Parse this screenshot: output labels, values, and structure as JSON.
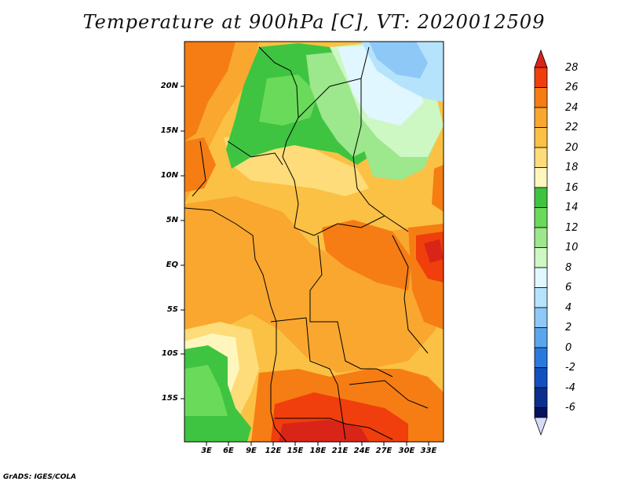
{
  "title": "Temperature at 900hPa [C], VT: 2020012509",
  "footer": "GrADS: IGES/COLA",
  "map": {
    "lon_range": [
      0,
      35
    ],
    "lat_range": [
      -20,
      25
    ],
    "lat_labels": [
      "20N",
      "15N",
      "10N",
      "5N",
      "EQ",
      "5S",
      "10S",
      "15S"
    ],
    "lon_labels": [
      "3E",
      "6E",
      "9E",
      "12E",
      "15E",
      "18E",
      "21E",
      "24E",
      "27E",
      "30E",
      "33E"
    ]
  },
  "colorbar": {
    "labels": [
      "28",
      "26",
      "24",
      "22",
      "20",
      "18",
      "16",
      "14",
      "12",
      "10",
      "8",
      "6",
      "4",
      "2",
      "0",
      "-2",
      "-4",
      "-6"
    ],
    "colors": {
      "gt28": "#d92418",
      "26_28": "#f03e0c",
      "24_26": "#f57d14",
      "22_24": "#f9a72f",
      "20_22": "#fbc144",
      "18_20": "#fddc79",
      "16_18": "#fff6bd",
      "14_16": "#3fc441",
      "12_14": "#6ada5a",
      "10_12": "#9de78c",
      "8_10": "#cdf7c3",
      "6_8": "#e0f7ff",
      "4_6": "#b6e3fc",
      "2_4": "#8ec8f7",
      "0_2": "#5aa6ed",
      "m2_0": "#2a79dc",
      "m4_m2": "#1250c1",
      "m6_m4": "#0b2f8f",
      "lt_m6": "#07115d",
      "below": "#d8dbf6"
    }
  }
}
